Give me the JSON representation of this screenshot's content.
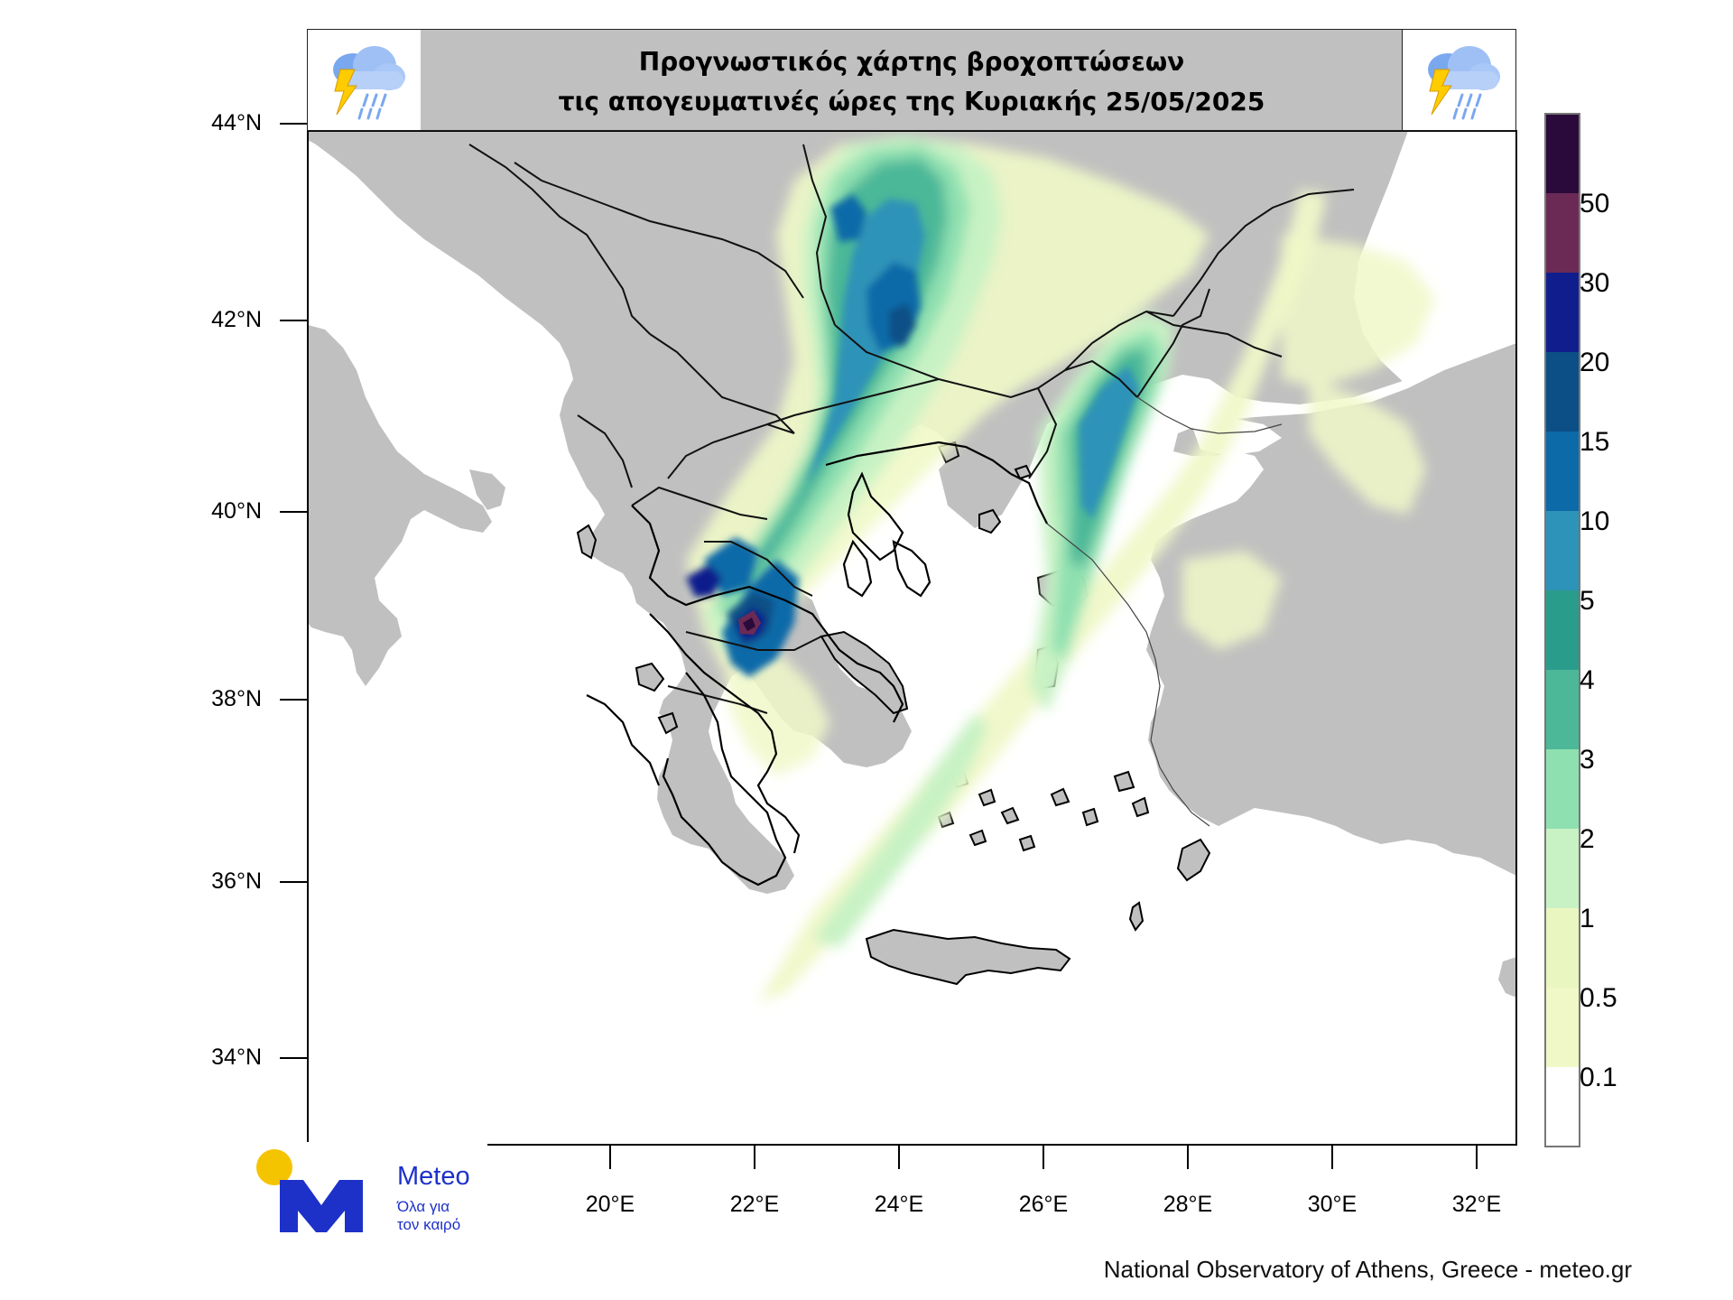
{
  "title": {
    "line1": "Προγνωστικός χάρτης βροχοπτώσεων",
    "line2": "τις απογευματινές ώρες  της Κυριακής 25/05/2025"
  },
  "icons": {
    "title_left": "thunderstorm-cloud-icon",
    "title_right": "thunderstorm-cloud-icon"
  },
  "axes": {
    "lat_labels": [
      "44°N",
      "42°N",
      "40°N",
      "38°N",
      "36°N",
      "34°N"
    ],
    "lon_labels": [
      "20°E",
      "22°E",
      "24°E",
      "26°E",
      "28°E",
      "30°E",
      "32°E"
    ]
  },
  "legend": {
    "labels": [
      "50",
      "30",
      "20",
      "15",
      "10",
      "5",
      "4",
      "3",
      "2",
      "1",
      "0.5",
      "0.1"
    ],
    "colors": [
      "#2a0a3a",
      "#6b2a55",
      "#0f1e8c",
      "#0b4f86",
      "#0c6aa8",
      "#2e93b8",
      "#2a9c8c",
      "#4cb898",
      "#8fe0b0",
      "#c8f2c4",
      "#eaf6c0",
      "#f0f8c8",
      "#ffffff"
    ]
  },
  "colors": {
    "land": "#c0c0c0",
    "sea": "#ffffff",
    "title_bg": "#c0c0c0",
    "brand_blue": "#1d31c9",
    "brand_sun": "#f5c400"
  },
  "logo": {
    "name": "Meteo",
    "tagline_line1": "Όλα για",
    "tagline_line2": "τον καιρό"
  },
  "credit": "National Observatory of Athens, Greece - meteo.gr"
}
